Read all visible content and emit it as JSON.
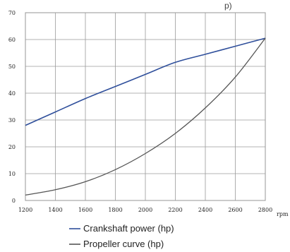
{
  "chart_data": {
    "type": "line",
    "title_fragment": "p)",
    "x": [
      1200,
      1400,
      1600,
      1800,
      2000,
      2200,
      2400,
      2600,
      2800
    ],
    "x_tick_labels": [
      "1200",
      "1400",
      "1600",
      "1800",
      "2000",
      "2200",
      "2400",
      "2600",
      "2800"
    ],
    "x_unit": "rpm",
    "xlim": [
      1200,
      2800
    ],
    "ylim": [
      0,
      70
    ],
    "y_tick_labels": [
      "0",
      "10",
      "20",
      "30",
      "40",
      "50",
      "60",
      "70"
    ],
    "y_ticks": [
      0,
      10,
      20,
      30,
      40,
      50,
      60,
      70
    ],
    "grid": true,
    "legend_position": "bottom",
    "series": [
      {
        "name": "Crankshaft power (hp)",
        "color": "#2f4f9b",
        "values": [
          28,
          33,
          38,
          42.5,
          47,
          51.5,
          54.5,
          57.5,
          60.5
        ]
      },
      {
        "name": "Propeller curve (hp)",
        "color": "#555555",
        "values": [
          2,
          4,
          7,
          11.5,
          17.5,
          25,
          34.5,
          46,
          60.5
        ]
      }
    ]
  }
}
